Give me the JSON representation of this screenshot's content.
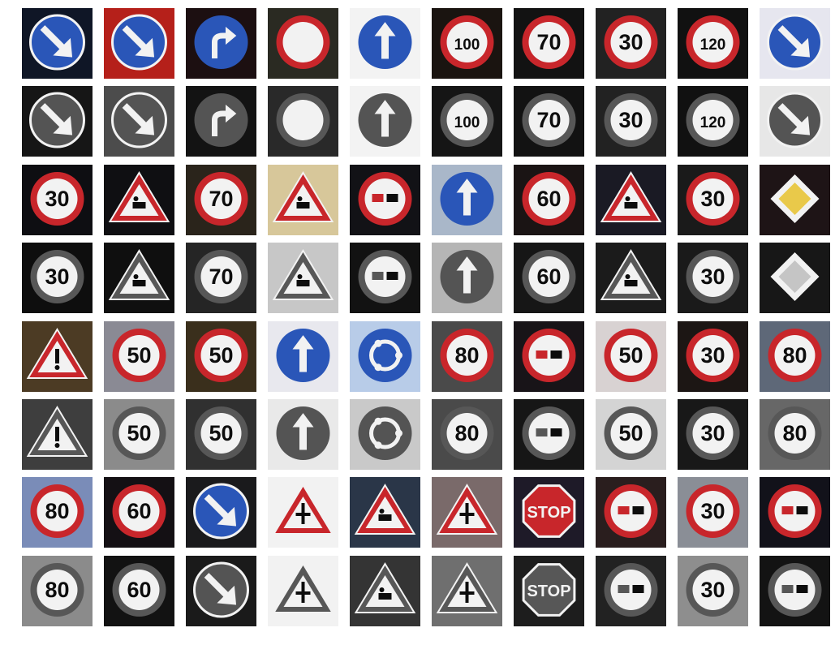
{
  "palette": {
    "blue": "#2a56b8",
    "red": "#c8262b",
    "white": "#f2f2f2",
    "yellow": "#e9c94a",
    "black": "#0d0d0d"
  },
  "grid": {
    "rows": 8,
    "cols": 10,
    "pairs": [
      [
        {
          "sign": "keep-right",
          "bg": "#0f1626"
        },
        {
          "sign": "keep-right",
          "bg": "#b5201a"
        },
        {
          "sign": "turn-right-ahead",
          "bg": "#1c0f11"
        },
        {
          "sign": "no-vehicles",
          "text": "",
          "bg": "#2a2a22"
        },
        {
          "sign": "ahead-only",
          "bg": "#f3f3f3"
        },
        {
          "sign": "speed-limit",
          "text": "100",
          "bg": "#1a1410"
        },
        {
          "sign": "speed-limit",
          "text": "70",
          "bg": "#121212"
        },
        {
          "sign": "speed-limit",
          "text": "30",
          "bg": "#222"
        },
        {
          "sign": "speed-limit",
          "text": "120",
          "bg": "#111"
        },
        {
          "sign": "keep-right",
          "bg": "#e6e6ef"
        }
      ],
      [
        {
          "sign": "speed-limit",
          "text": "30",
          "bg": "#0e0e12"
        },
        {
          "sign": "road-work",
          "bg": "#0f0f12"
        },
        {
          "sign": "speed-limit",
          "text": "70",
          "bg": "#2a241b"
        },
        {
          "sign": "road-work",
          "bg": "#d7c79a"
        },
        {
          "sign": "no-trucks-passing",
          "bg": "#121216"
        },
        {
          "sign": "ahead-only",
          "bg": "#a9b7c9"
        },
        {
          "sign": "speed-limit",
          "text": "60",
          "bg": "#1a1414"
        },
        {
          "sign": "children-crossing",
          "bg": "#1a1a24"
        },
        {
          "sign": "speed-limit",
          "text": "30",
          "bg": "#1a1a1a"
        },
        {
          "sign": "priority-road",
          "bg": "#1e1416"
        }
      ],
      [
        {
          "sign": "general-caution",
          "bg": "#4c3b24"
        },
        {
          "sign": "speed-limit",
          "text": "50",
          "bg": "#8a8a94"
        },
        {
          "sign": "speed-limit",
          "text": "50",
          "bg": "#3a2f1c"
        },
        {
          "sign": "ahead-only",
          "bg": "#e8e8ee"
        },
        {
          "sign": "roundabout",
          "bg": "#b8cce8"
        },
        {
          "sign": "speed-limit",
          "text": "80",
          "bg": "#4a4a4a"
        },
        {
          "sign": "no-trucks-passing",
          "bg": "#181418"
        },
        {
          "sign": "speed-limit",
          "text": "50",
          "bg": "#d8d2d2"
        },
        {
          "sign": "speed-limit",
          "text": "30",
          "bg": "#1c1614"
        },
        {
          "sign": "speed-limit",
          "text": "80",
          "bg": "#5e6878"
        }
      ],
      [
        {
          "sign": "speed-limit",
          "text": "80",
          "bg": "#7a8cb8"
        },
        {
          "sign": "speed-limit",
          "text": "60",
          "bg": "#141014"
        },
        {
          "sign": "keep-right",
          "bg": "#1a1a1c"
        },
        {
          "sign": "right-of-way",
          "bg": "#f2f2f2"
        },
        {
          "sign": "road-work",
          "bg": "#2a3648"
        },
        {
          "sign": "right-of-way",
          "bg": "#7a6a6a"
        },
        {
          "sign": "stop",
          "text": "STOP",
          "bg": "#1e1a28"
        },
        {
          "sign": "no-trucks-passing",
          "bg": "#2a1e1e"
        },
        {
          "sign": "speed-limit",
          "text": "30",
          "bg": "#8a8e96"
        },
        {
          "sign": "no-trucks-passing",
          "bg": "#12121a"
        }
      ]
    ]
  }
}
